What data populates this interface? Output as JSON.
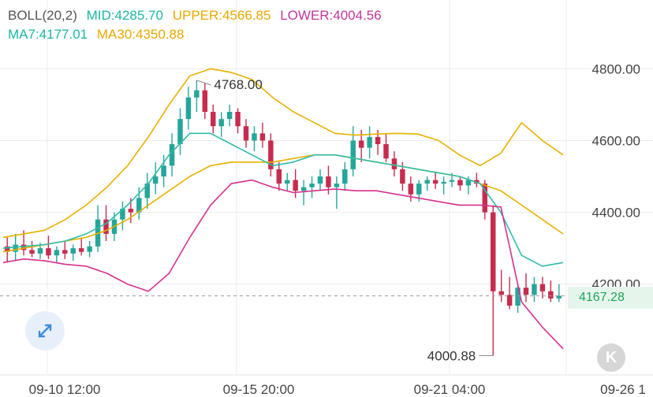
{
  "indicators": {
    "boll_label": "BOLL(20,2)",
    "mid": {
      "label": "MID:4285.70",
      "color": "#1bb5a5"
    },
    "upper": {
      "label": "UPPER:4566.85",
      "color": "#e8a800"
    },
    "lower": {
      "label": "LOWER:4004.56",
      "color": "#c2359d"
    },
    "ma7": {
      "label": "MA7:4177.01",
      "color": "#1bb5a5"
    },
    "ma30": {
      "label": "MA30:4350.88",
      "color": "#e8a800"
    }
  },
  "colors": {
    "up": "#26a69a",
    "down": "#c62c4f",
    "upper_band": "#e8b100",
    "lower_band": "#d6308e",
    "mid_band": "#2fbca8",
    "ma30": "#e8b100",
    "grid": "#ececec",
    "axis_text": "#444444"
  },
  "price_axis": {
    "ticks": [
      "4800.00",
      "4600.00",
      "4400.00",
      "4200.00"
    ],
    "last_price": "4167.28"
  },
  "time_axis": {
    "ticks": [
      "09-10 12:00",
      "09-15 20:00",
      "09-21 04:00",
      "09-26 1"
    ]
  },
  "annotations": {
    "high": "4768.00",
    "low": "4000.88"
  },
  "icons": {
    "expand": "expand-arrows-icon",
    "k_button": "K"
  },
  "chart_data": {
    "type": "candlestick",
    "y_range": [
      3960,
      4860
    ],
    "candles": [
      [
        4305,
        4330,
        4260,
        4290
      ],
      [
        4290,
        4340,
        4265,
        4310
      ],
      [
        4310,
        4350,
        4280,
        4295
      ],
      [
        4295,
        4320,
        4275,
        4285
      ],
      [
        4285,
        4315,
        4270,
        4300
      ],
      [
        4300,
        4335,
        4270,
        4280
      ],
      [
        4280,
        4305,
        4260,
        4295
      ],
      [
        4295,
        4320,
        4270,
        4285
      ],
      [
        4285,
        4310,
        4265,
        4300
      ],
      [
        4300,
        4330,
        4280,
        4290
      ],
      [
        4290,
        4320,
        4275,
        4305
      ],
      [
        4305,
        4420,
        4290,
        4380
      ],
      [
        4380,
        4420,
        4320,
        4340
      ],
      [
        4340,
        4400,
        4320,
        4380
      ],
      [
        4380,
        4430,
        4350,
        4410
      ],
      [
        4410,
        4440,
        4370,
        4400
      ],
      [
        4400,
        4470,
        4380,
        4440
      ],
      [
        4440,
        4510,
        4410,
        4480
      ],
      [
        4480,
        4540,
        4450,
        4500
      ],
      [
        4500,
        4560,
        4470,
        4530
      ],
      [
        4530,
        4620,
        4500,
        4590
      ],
      [
        4590,
        4690,
        4560,
        4660
      ],
      [
        4660,
        4750,
        4630,
        4720
      ],
      [
        4720,
        4768,
        4680,
        4740
      ],
      [
        4740,
        4760,
        4660,
        4680
      ],
      [
        4680,
        4700,
        4620,
        4640
      ],
      [
        4640,
        4680,
        4610,
        4660
      ],
      [
        4660,
        4700,
        4640,
        4680
      ],
      [
        4680,
        4690,
        4620,
        4640
      ],
      [
        4640,
        4660,
        4580,
        4600
      ],
      [
        4600,
        4640,
        4570,
        4620
      ],
      [
        4620,
        4650,
        4580,
        4600
      ],
      [
        4600,
        4620,
        4500,
        4520
      ],
      [
        4520,
        4540,
        4460,
        4480
      ],
      [
        4480,
        4510,
        4460,
        4490
      ],
      [
        4490,
        4520,
        4440,
        4460
      ],
      [
        4460,
        4490,
        4420,
        4470
      ],
      [
        4470,
        4500,
        4440,
        4480
      ],
      [
        4480,
        4520,
        4460,
        4500
      ],
      [
        4500,
        4530,
        4450,
        4470
      ],
      [
        4470,
        4500,
        4410,
        4480
      ],
      [
        4480,
        4540,
        4460,
        4520
      ],
      [
        4520,
        4640,
        4500,
        4600
      ],
      [
        4600,
        4630,
        4540,
        4580
      ],
      [
        4580,
        4640,
        4550,
        4610
      ],
      [
        4610,
        4630,
        4560,
        4590
      ],
      [
        4590,
        4620,
        4540,
        4550
      ],
      [
        4550,
        4570,
        4500,
        4520
      ],
      [
        4520,
        4540,
        4460,
        4480
      ],
      [
        4480,
        4500,
        4430,
        4450
      ],
      [
        4450,
        4490,
        4430,
        4480
      ],
      [
        4480,
        4500,
        4460,
        4490
      ],
      [
        4490,
        4510,
        4465,
        4480
      ],
      [
        4480,
        4500,
        4450,
        4485
      ],
      [
        4485,
        4510,
        4470,
        4490
      ],
      [
        4490,
        4500,
        4460,
        4475
      ],
      [
        4475,
        4500,
        4450,
        4490
      ],
      [
        4490,
        4510,
        4470,
        4480
      ],
      [
        4480,
        4490,
        4380,
        4400
      ],
      [
        4400,
        4420,
        4000.88,
        4180
      ],
      [
        4180,
        4240,
        4150,
        4170
      ],
      [
        4170,
        4220,
        4130,
        4140
      ],
      [
        4140,
        4200,
        4120,
        4190
      ],
      [
        4190,
        4230,
        4150,
        4170
      ],
      [
        4170,
        4220,
        4150,
        4200
      ],
      [
        4200,
        4220,
        4160,
        4180
      ],
      [
        4180,
        4210,
        4150,
        4160
      ],
      [
        4160,
        4200,
        4150,
        4167.28
      ]
    ],
    "bands": {
      "upper": [
        4330,
        4340,
        4350,
        4380,
        4420,
        4470,
        4530,
        4610,
        4700,
        4780,
        4800,
        4790,
        4770,
        4720,
        4680,
        4650,
        4620,
        4615,
        4618,
        4620,
        4618,
        4600,
        4560,
        4530,
        4565,
        4650,
        4600,
        4560
      ],
      "lower": [
        4260,
        4270,
        4265,
        4255,
        4250,
        4230,
        4200,
        4180,
        4230,
        4330,
        4420,
        4480,
        4490,
        4470,
        4455,
        4460,
        4465,
        4460,
        4460,
        4450,
        4440,
        4430,
        4420,
        4420,
        4415,
        4150,
        4080,
        4020
      ],
      "mid": [
        4300,
        4305,
        4310,
        4320,
        4340,
        4370,
        4420,
        4480,
        4560,
        4620,
        4620,
        4590,
        4560,
        4530,
        4540,
        4560,
        4560,
        4550,
        4540,
        4530,
        4520,
        4510,
        4500,
        4480,
        4400,
        4280,
        4250,
        4260
      ],
      "ma30": [
        4290,
        4300,
        4310,
        4320,
        4330,
        4350,
        4380,
        4420,
        4460,
        4500,
        4530,
        4540,
        4540,
        4540,
        4550,
        4560,
        4560,
        4550,
        4540,
        4530,
        4520,
        4510,
        4500,
        4480,
        4460,
        4420,
        4380,
        4340
      ]
    }
  }
}
